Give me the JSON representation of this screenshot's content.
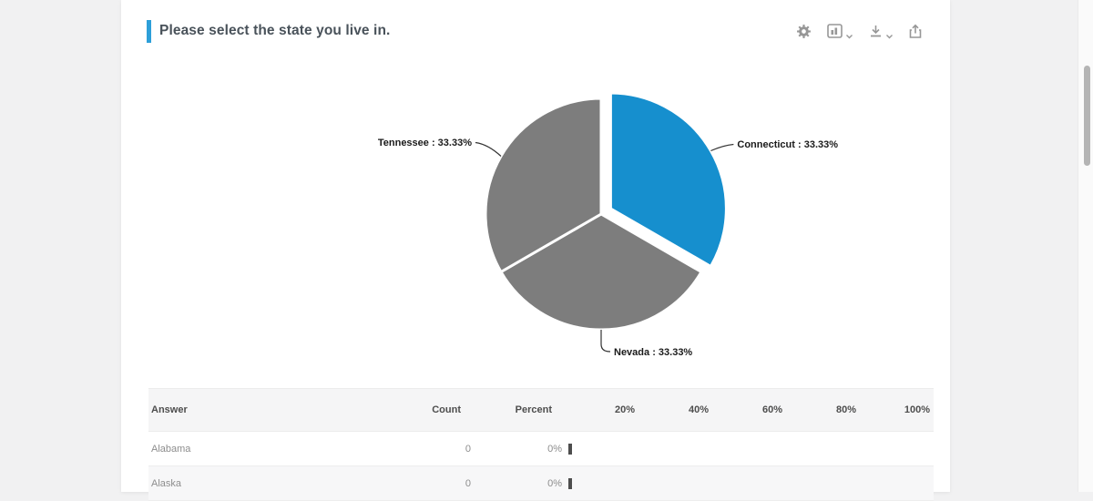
{
  "question": {
    "title": "Please select the state you live in."
  },
  "toolbar": {
    "settings_icon": "gear-icon",
    "chart_type_icon": "bar-chart-icon",
    "download_icon": "download-arrow-icon",
    "share_icon": "share-arrow-icon"
  },
  "chart_data": {
    "type": "pie",
    "direction": "clockwise",
    "start_angle_deg": 0,
    "legend_position": "none",
    "slices": [
      {
        "label": "Connecticut",
        "value": 33.33,
        "display": "Connecticut : 33.33%",
        "color": "#168fce",
        "exploded": true
      },
      {
        "label": "Nevada",
        "value": 33.33,
        "display": "Nevada : 33.33%",
        "color": "#7d7d7d",
        "exploded": false
      },
      {
        "label": "Tennessee",
        "value": 33.33,
        "display": "Tennessee : 33.33%",
        "color": "#7d7d7d",
        "exploded": false
      }
    ]
  },
  "table": {
    "headers": {
      "answer": "Answer",
      "count": "Count",
      "percent": "Percent",
      "scale": [
        "20%",
        "40%",
        "60%",
        "80%",
        "100%"
      ]
    },
    "rows": [
      {
        "answer": "Alabama",
        "count": "0",
        "percent": "0%",
        "bar_pct": 0
      },
      {
        "answer": "Alaska",
        "count": "0",
        "percent": "0%",
        "bar_pct": 0
      }
    ]
  },
  "colors": {
    "accent_blue": "#2d9fd9",
    "pie_blue": "#168fce",
    "pie_gray": "#7d7d7d",
    "page_background": "#f1f1f2",
    "card_background": "#ffffff"
  }
}
